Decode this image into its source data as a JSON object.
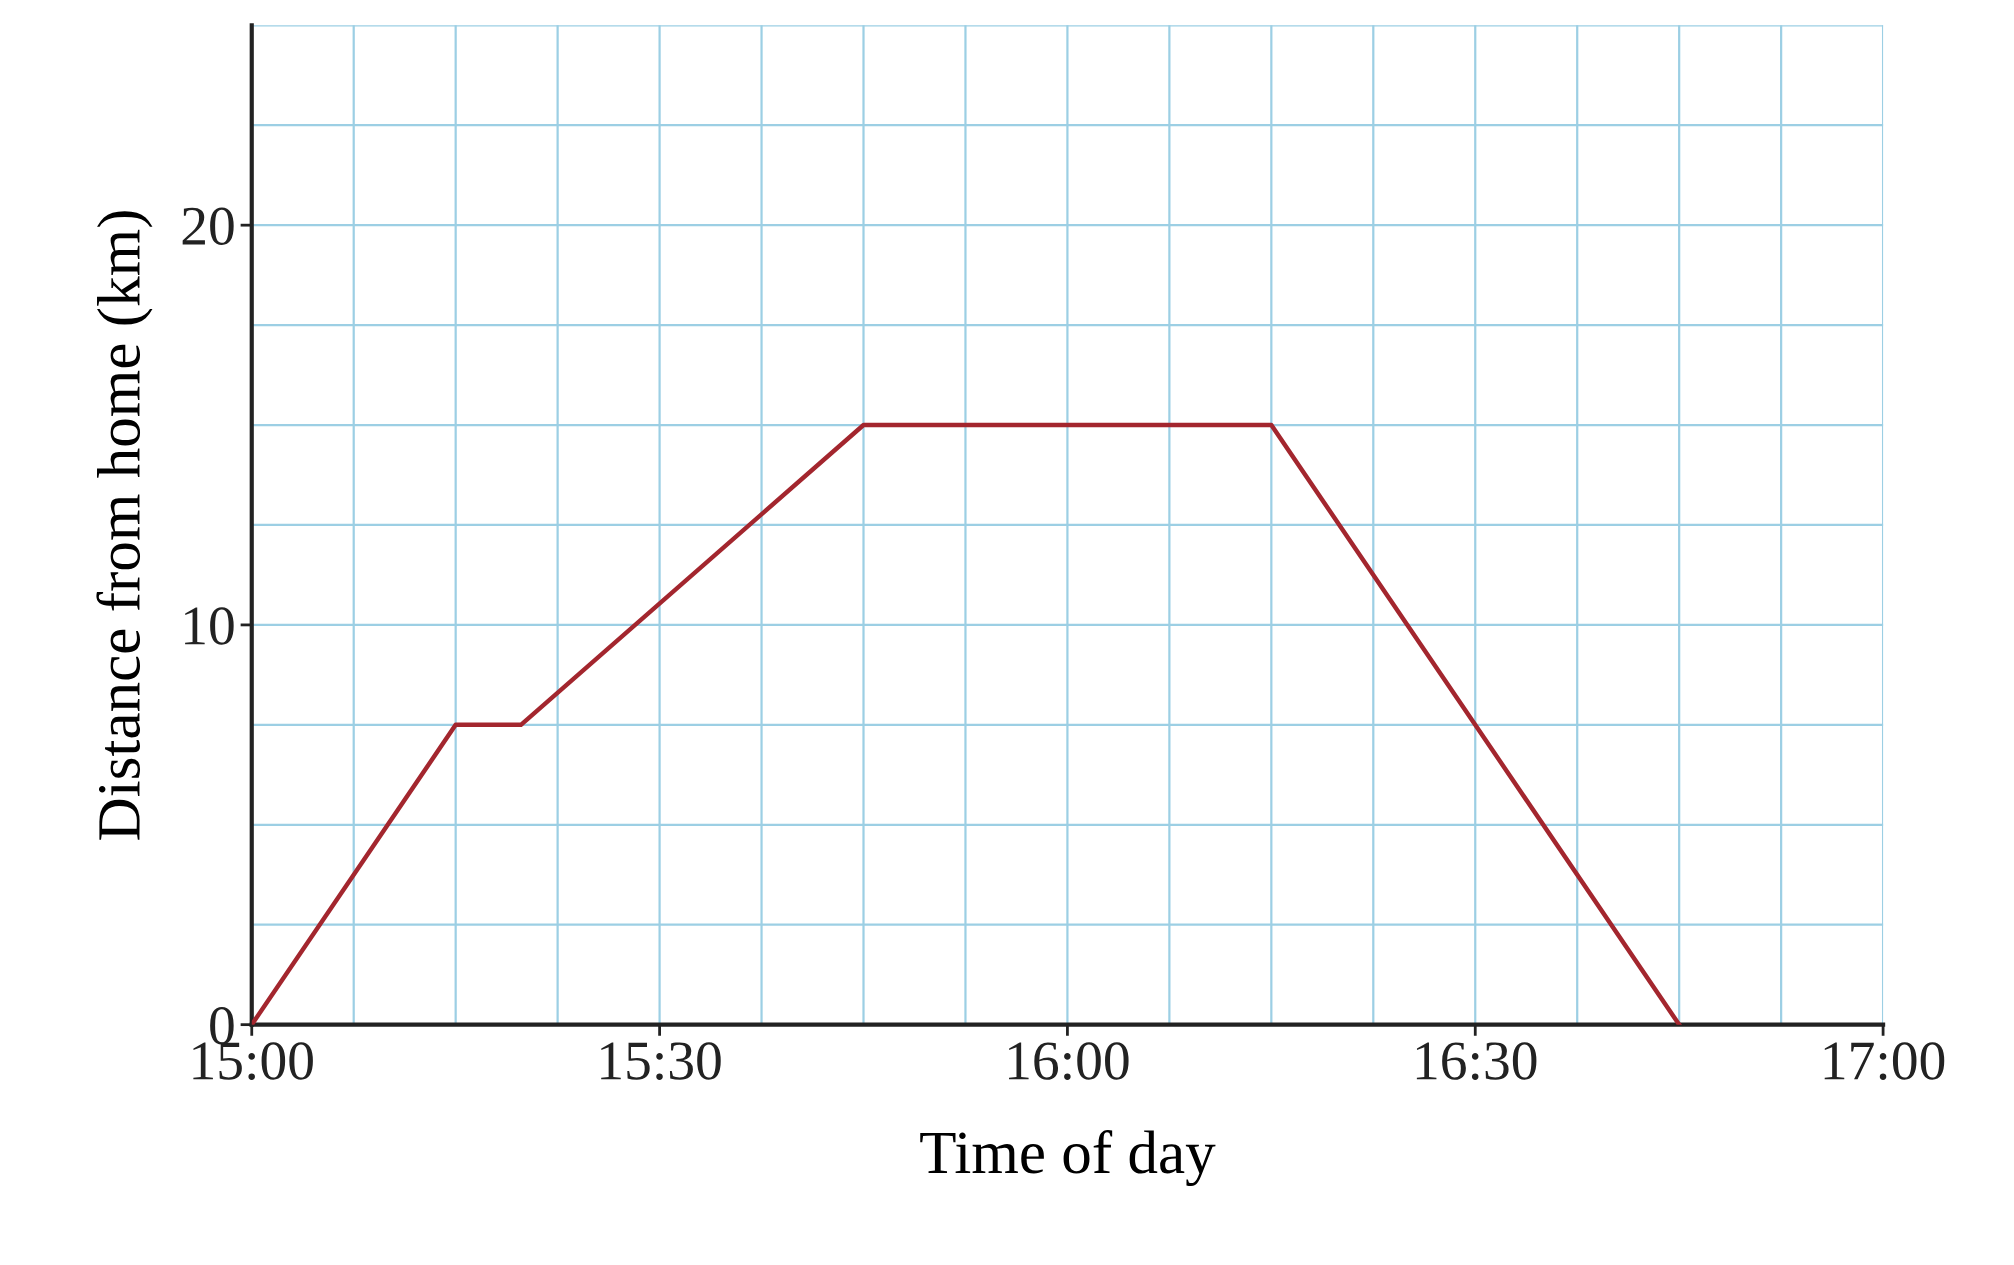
{
  "chart_data": {
    "type": "line",
    "xlabel": "Time of day",
    "ylabel": "Distance from home (km)",
    "x": [
      15,
      15.25,
      15.33,
      15.75,
      16.25,
      16.75
    ],
    "series": [
      {
        "color": "#a3262e",
        "values": [
          0,
          7.5,
          7.5,
          15,
          15,
          0
        ]
      }
    ],
    "xlim": [
      15,
      17
    ],
    "xticks": [
      {
        "value": 15,
        "label": "15:00"
      },
      {
        "value": 15.125,
        "label": null
      },
      {
        "value": 15.25,
        "label": null
      },
      {
        "value": 15.375,
        "label": null
      },
      {
        "value": 15.5,
        "label": "15:30"
      },
      {
        "value": 15.625,
        "label": null
      },
      {
        "value": 15.75,
        "label": null
      },
      {
        "value": 15.875,
        "label": null
      },
      {
        "value": 16,
        "label": "16:00"
      },
      {
        "value": 16.125,
        "label": null
      },
      {
        "value": 16.25,
        "label": null
      },
      {
        "value": 16.375,
        "label": null
      },
      {
        "value": 16.5,
        "label": "16:30"
      },
      {
        "value": 16.625,
        "label": null
      },
      {
        "value": 16.75,
        "label": null
      },
      {
        "value": 16.875,
        "label": null
      },
      {
        "value": 17,
        "label": "17:00"
      }
    ],
    "ylim": [
      0,
      25
    ],
    "yticks": [
      0,
      {
        "value": 2.5,
        "label": null
      },
      {
        "value": 5,
        "label": null
      },
      {
        "value": 7.5,
        "label": null
      },
      10,
      {
        "value": 12.5,
        "label": null
      },
      {
        "value": 15,
        "label": null
      },
      {
        "value": 17.5,
        "label": null
      },
      20,
      {
        "value": 22.5,
        "label": null
      },
      {
        "value": 25,
        "label": null
      }
    ],
    "grid": true,
    "marker": "none",
    "line_style": "solid"
  }
}
